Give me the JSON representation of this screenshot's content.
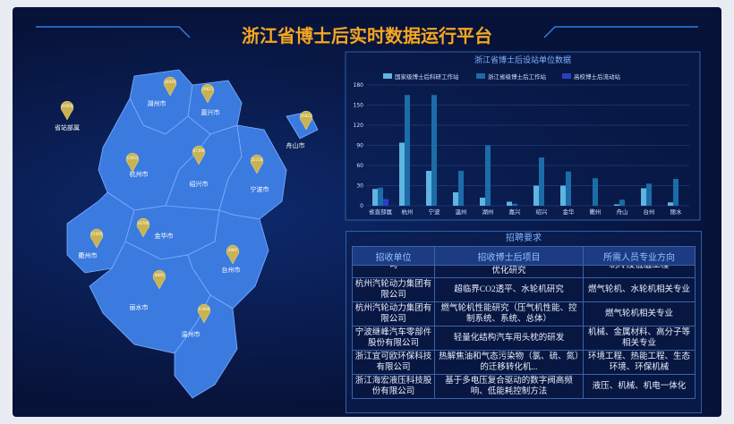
{
  "header": {
    "title": "浙江省博士后实时数据运行平台"
  },
  "map": {
    "regions": [
      {
        "name": "省站部属",
        "marker": "20000"
      },
      {
        "name": "湖州市",
        "marker": "34040"
      },
      {
        "name": "嘉兴市",
        "marker": "24611"
      },
      {
        "name": "舟山市",
        "marker": "16822"
      },
      {
        "name": "杭州市",
        "marker": "15601"
      },
      {
        "name": "绍兴市",
        "marker": "67390"
      },
      {
        "name": "宁波市",
        "marker": "21114"
      },
      {
        "name": "衢州市",
        "marker": "51560"
      },
      {
        "name": "金华市",
        "marker": "16780"
      },
      {
        "name": "台州市",
        "marker": "4060"
      },
      {
        "name": "丽水市",
        "marker": "8600"
      },
      {
        "name": "温州市",
        "marker": "11600"
      }
    ]
  },
  "chart_data": {
    "type": "bar",
    "title": "浙江省博士后设站单位数据",
    "categories": [
      "省直部属",
      "杭州",
      "宁波",
      "温州",
      "湖州",
      "嘉兴",
      "绍兴",
      "金华",
      "衢州",
      "舟山",
      "台州",
      "丽水"
    ],
    "series": [
      {
        "name": "国家级博士后科研工作站",
        "color": "#5fb4e0",
        "values": [
          25,
          94,
          52,
          20,
          12,
          6,
          30,
          30,
          0,
          2,
          26,
          5
        ]
      },
      {
        "name": "浙江省级博士后工作站",
        "color": "#1c6ca8",
        "values": [
          27,
          165,
          165,
          52,
          90,
          3,
          72,
          51,
          41,
          9,
          33,
          40
        ]
      },
      {
        "name": "高校博士后流动站",
        "color": "#2a3fc4",
        "values": [
          10,
          0,
          0,
          0,
          0,
          0,
          0,
          0,
          0,
          0,
          0,
          0
        ]
      }
    ],
    "ylim": [
      0,
      180
    ],
    "yticks": [
      0,
      30,
      60,
      90,
      120,
      150,
      180
    ],
    "grid": true
  },
  "table": {
    "title": "招聘要求",
    "columns": [
      "招收单位",
      "招收博士后项目",
      "所需人员专业方向"
    ],
    "rows": [
      [
        "司",
        "新能源电动汽车热泵空调膨胀阀性能优化研究",
        "制冷及低温工程"
      ],
      [
        "杭州汽轮动力集团有限公司",
        "超临界CO2透平、水轮机研究",
        "燃气轮机、水轮机相关专业"
      ],
      [
        "杭州汽轮动力集团有限公司",
        "燃气轮机性能研究（压气机性能、控制系统、系统、总体）",
        "燃气轮机相关专业"
      ],
      [
        "宁波继峰汽车零部件股份有限公司",
        "轻量化结构汽车用头枕的研发",
        "机械、金属材料、高分子等相关专业"
      ],
      [
        "浙江宜可欧环保科技有限公司",
        "热解焦油和气态污染物（氯、硫、氮）的迁移转化机...",
        "环境工程、热能工程、生态环境、环保机械"
      ],
      [
        "浙江海宏液压科技股份有限公司",
        "基于多电压复合驱动的数字阀高频响、低能耗控制方法",
        "液压、机械、机电一体化"
      ]
    ]
  }
}
